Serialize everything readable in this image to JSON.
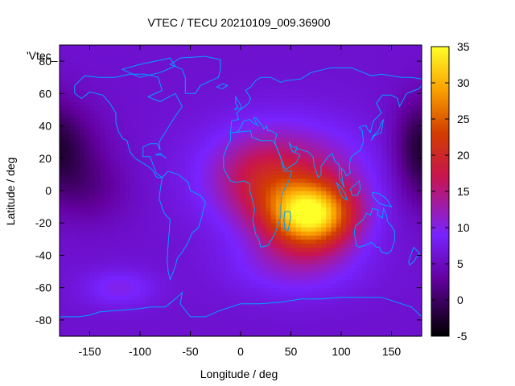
{
  "chart_data": {
    "type": "heatmap",
    "title": "VTEC / TECU 20210109_009.36900",
    "xlabel": "Longitude / deg",
    "ylabel": "Latitude / deg",
    "key_title": "'Vtec_",
    "xlim": [
      -180,
      180
    ],
    "ylim": [
      -90,
      90
    ],
    "xticks": [
      -150,
      -100,
      -50,
      0,
      50,
      100,
      150
    ],
    "yticks": [
      -80,
      -60,
      -40,
      -20,
      0,
      20,
      40,
      60,
      80
    ],
    "cbrange": [
      -5,
      35
    ],
    "cbticks": [
      -5,
      0,
      5,
      10,
      15,
      20,
      25,
      30,
      35
    ],
    "palette": "black-purple-red-orange-yellow",
    "coastline_color": "#00a0ff",
    "grid": false,
    "legend": "none",
    "features": [
      {
        "lon": 70,
        "lat": -15,
        "sx": 30,
        "sy": 14,
        "amp": 26
      },
      {
        "lon": 45,
        "lat": 10,
        "sx": 55,
        "sy": 22,
        "amp": 9
      },
      {
        "lon": 20,
        "lat": 5,
        "sx": 30,
        "sy": 18,
        "amp": 5
      },
      {
        "lon": 55,
        "lat": -45,
        "sx": 45,
        "sy": 14,
        "amp": 5
      },
      {
        "lon": -120,
        "lat": -60,
        "sx": 25,
        "sy": 8,
        "amp": 4
      },
      {
        "lon": -170,
        "lat": 25,
        "sx": 25,
        "sy": 20,
        "amp": -5
      },
      {
        "lon": -150,
        "lat": 0,
        "sx": 30,
        "sy": 15,
        "amp": -3
      },
      {
        "lon": 175,
        "lat": 30,
        "sx": 15,
        "sy": 20,
        "amp": -4
      }
    ],
    "base_level": 6,
    "grid_step": [
      5,
      2.5
    ]
  }
}
